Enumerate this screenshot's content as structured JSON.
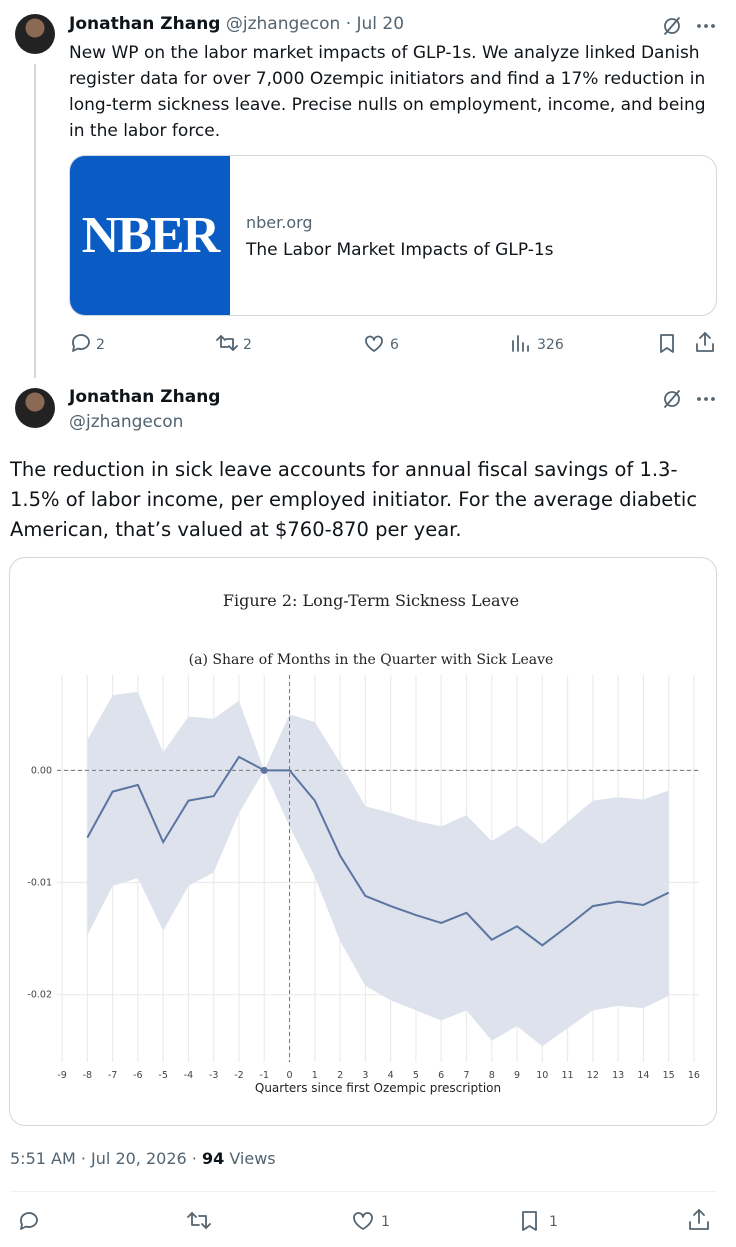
{
  "separator": "·",
  "tweets": [
    {
      "name": "Jonathan Zhang",
      "handle": "@jzhangecon",
      "date": "Jul 20",
      "text": "New WP on the labor market impacts of GLP-1s. We analyze linked Danish register data for over 7,000 Ozempic initiators and find a 17% reduction in long-term sickness leave. Precise nulls on employment, income, and being in the labor force.",
      "card": {
        "logo_text": "NBER",
        "domain": "nber.org",
        "title": "The Labor Market Impacts of GLP-1s"
      },
      "actions": {
        "replies": 2,
        "reposts": 2,
        "likes": 6,
        "views": 326
      }
    },
    {
      "name": "Jonathan Zhang",
      "handle": "@jzhangecon",
      "text": "The reduction in sick leave accounts for annual fiscal savings of 1.3-1.5% of labor income, per employed initiator. For the average diabetic American, that’s valued at  $760-870 per year.",
      "chart_data": {
        "type": "line",
        "title": "Figure 2: Long-Term Sickness Leave",
        "subtitle": "(a) Share of Months in the Quarter with Sick Leave",
        "x_label": "Quarters since first Ozempic prescription",
        "x": [
          -8,
          -7,
          -6,
          -5,
          -4,
          -3,
          -2,
          -1,
          0,
          1,
          2,
          3,
          4,
          5,
          6,
          7,
          8,
          9,
          10,
          11,
          12,
          13,
          14,
          15
        ],
        "series": [
          {
            "color": "#5b74a0",
            "band_color": "#dde2ed",
            "values": [
              -0.006,
              -0.0019,
              -0.0013,
              -0.0064,
              -0.0027,
              -0.0023,
              0.0012,
              0,
              0,
              -0.0027,
              -0.0076,
              -0.0112,
              -0.0121,
              -0.0129,
              -0.0136,
              -0.0127,
              -0.0151,
              -0.0139,
              -0.0156,
              -0.0139,
              -0.0121,
              -0.0117,
              -0.012,
              -0.0109
            ],
            "ci_upper": [
              0.0027,
              0.0067,
              0.007,
              0.0016,
              0.0048,
              0.0046,
              0.0062,
              0,
              0.005,
              0.0043,
              0.0007,
              -0.0032,
              -0.0038,
              -0.0045,
              -0.005,
              -0.004,
              -0.0063,
              -0.0049,
              -0.0066,
              -0.0046,
              -0.0027,
              -0.0024,
              -0.0026,
              -0.0018
            ],
            "ci_lower": [
              -0.0147,
              -0.0103,
              -0.0096,
              -0.0143,
              -0.0103,
              -0.0091,
              -0.0038,
              0,
              -0.005,
              -0.0095,
              -0.0152,
              -0.0192,
              -0.0205,
              -0.0214,
              -0.0223,
              -0.0214,
              -0.0241,
              -0.0228,
              -0.0246,
              -0.023,
              -0.0214,
              -0.021,
              -0.0212,
              -0.0201
            ]
          }
        ],
        "reference_x": -1,
        "hline": 0,
        "vline": 0,
        "xlim": [
          -9.2,
          16.2
        ],
        "xticks": [
          -9,
          -8,
          -7,
          -6,
          -5,
          -4,
          -3,
          -2,
          -1,
          0,
          1,
          2,
          3,
          4,
          5,
          6,
          7,
          8,
          9,
          10,
          11,
          12,
          13,
          14,
          15,
          16
        ],
        "ylim": [
          -0.026,
          0.0085
        ],
        "yticks": [
          {
            "value": 0,
            "label": "0.00"
          },
          -0.01,
          -0.02
        ],
        "grid": true
      },
      "time": "5:51 AM",
      "date": "Jul 20, 2026",
      "views_count": 94,
      "views_label": "Views",
      "actions": {
        "likes": 1,
        "bookmarks": 1
      }
    }
  ]
}
